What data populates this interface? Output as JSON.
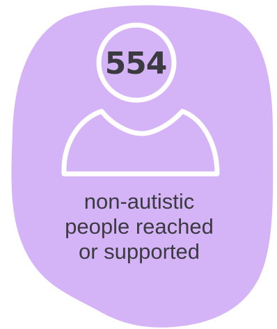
{
  "stat": {
    "value": "554",
    "caption_lines": [
      "non-autistic",
      "people reached",
      "or supported"
    ]
  },
  "colors": {
    "blob": "#d5b3f7",
    "outline": "#ffffff",
    "text": "#3a3a40"
  },
  "icons": {
    "figure": "person-outline-icon"
  }
}
